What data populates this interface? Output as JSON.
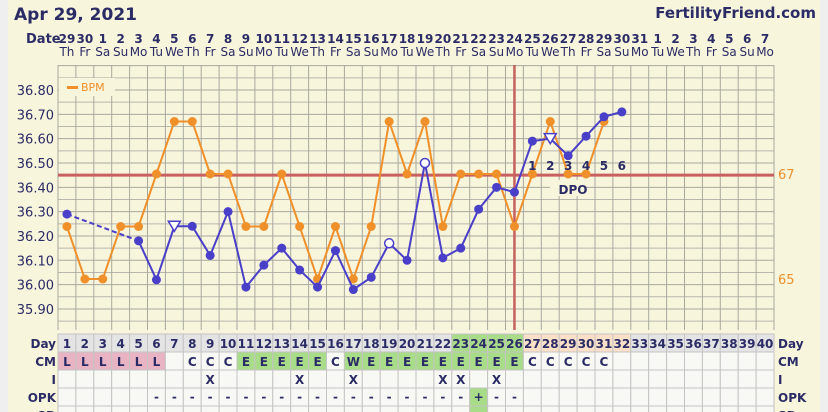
{
  "header": {
    "date": "Apr 29, 2021",
    "site": "FertilityFriend.com",
    "date_label": "Date"
  },
  "dates": [
    "29",
    "30",
    "1",
    "2",
    "3",
    "4",
    "5",
    "6",
    "7",
    "8",
    "9",
    "10",
    "11",
    "12",
    "13",
    "14",
    "15",
    "16",
    "17",
    "18",
    "19",
    "20",
    "21",
    "22",
    "23",
    "24",
    "25",
    "26",
    "27",
    "28",
    "29",
    "30",
    "31",
    "1",
    "2",
    "3",
    "4",
    "5",
    "6",
    "7"
  ],
  "weekdays": [
    "Th",
    "Fr",
    "Sa",
    "Su",
    "Mo",
    "Tu",
    "We",
    "Th",
    "Fr",
    "Sa",
    "Su",
    "Mo",
    "Tu",
    "We",
    "Th",
    "Fr",
    "Sa",
    "Su",
    "Mo",
    "Tu",
    "We",
    "Th",
    "Fr",
    "Sa",
    "Su",
    "Mo",
    "Tu",
    "We",
    "Th",
    "Fr",
    "Sa",
    "Su",
    "Mo",
    "Tu",
    "We",
    "Th",
    "Fr",
    "Sa",
    "Su",
    "Mo"
  ],
  "colors": {
    "temp": "#4a3fc8",
    "bpm": "#f0902a",
    "coverline": "#c86060",
    "cm_l": "#e8b4c4",
    "cm_fertile": "#a8dc88",
    "luteal_header": "#fbe0c8",
    "fertile_header": "#a8dc88"
  },
  "chart_data": {
    "type": "line",
    "xlabel": "Day",
    "ylim": [
      35.8,
      36.9
    ],
    "y_ticks": [
      "36.80",
      "36.70",
      "36.60",
      "36.50",
      "36.40",
      "36.30",
      "36.20",
      "36.10",
      "36.00",
      "35.90"
    ],
    "y2_ticks": [
      "67",
      "65"
    ],
    "grid": true,
    "legend": {
      "placement": "top-left",
      "entries": [
        "BPM"
      ]
    },
    "coverline": 36.45,
    "ovulation_day": 26,
    "dpo_label": "DPO",
    "dpo_numbers": [
      {
        "day": 27,
        "label": "1"
      },
      {
        "day": 28,
        "label": "2"
      },
      {
        "day": 29,
        "label": "3"
      },
      {
        "day": 30,
        "label": "4"
      },
      {
        "day": 31,
        "label": "5"
      },
      {
        "day": 32,
        "label": "6"
      }
    ],
    "series": [
      {
        "name": "Temperature",
        "points": [
          {
            "day": 1,
            "value": 36.29
          },
          {
            "day": 5,
            "value": 36.18,
            "dashed_from_prev": true
          },
          {
            "day": 6,
            "value": 36.02
          },
          {
            "day": 7,
            "value": 36.24,
            "marker": "open-triangle"
          },
          {
            "day": 8,
            "value": 36.24
          },
          {
            "day": 9,
            "value": 36.12
          },
          {
            "day": 10,
            "value": 36.3
          },
          {
            "day": 11,
            "value": 35.99
          },
          {
            "day": 12,
            "value": 36.08
          },
          {
            "day": 13,
            "value": 36.15
          },
          {
            "day": 14,
            "value": 36.06
          },
          {
            "day": 15,
            "value": 35.99
          },
          {
            "day": 16,
            "value": 36.14
          },
          {
            "day": 17,
            "value": 35.98
          },
          {
            "day": 18,
            "value": 36.03
          },
          {
            "day": 19,
            "value": 36.17,
            "marker": "open-circle"
          },
          {
            "day": 20,
            "value": 36.1
          },
          {
            "day": 21,
            "value": 36.5,
            "marker": "open-circle"
          },
          {
            "day": 22,
            "value": 36.11
          },
          {
            "day": 23,
            "value": 36.15
          },
          {
            "day": 24,
            "value": 36.31
          },
          {
            "day": 25,
            "value": 36.4
          },
          {
            "day": 26,
            "value": 36.38
          },
          {
            "day": 27,
            "value": 36.59
          },
          {
            "day": 28,
            "value": 36.6,
            "marker": "open-triangle"
          },
          {
            "day": 29,
            "value": 36.53
          },
          {
            "day": 30,
            "value": 36.61
          },
          {
            "day": 31,
            "value": 36.69
          },
          {
            "day": 32,
            "value": 36.71
          }
        ]
      },
      {
        "name": "BPM",
        "axis": "right",
        "values": [
          66,
          65,
          65,
          66,
          66,
          67,
          68,
          68,
          67,
          67,
          66,
          66,
          67,
          66,
          65,
          66,
          65,
          66,
          68,
          67,
          68,
          66,
          67,
          67,
          67,
          66,
          67,
          68,
          67,
          67,
          68
        ]
      }
    ]
  },
  "table": {
    "row_labels": [
      "Day",
      "CM",
      "I",
      "OPK",
      "SD"
    ],
    "cm": [
      "L",
      "L",
      "L",
      "L",
      "L",
      "L",
      "",
      "C",
      "C",
      "C",
      "E",
      "E",
      "E",
      "E",
      "E",
      "C",
      "W",
      "E",
      "E",
      "E",
      "E",
      "E",
      "E",
      "E",
      "E",
      "E",
      "C",
      "C",
      "C",
      "C",
      "C",
      "",
      "",
      "",
      "",
      "",
      "",
      "",
      "",
      ""
    ],
    "intercourse_days": [
      9,
      14,
      17,
      22,
      23,
      25
    ],
    "intercourse_mark": "X",
    "opk": {
      "negative_days_from": 6,
      "negative_days_to": 26,
      "positive_day": 24,
      "negative_mark": "-",
      "positive_mark": "+"
    },
    "fertile_header_days": [
      23,
      24,
      25,
      26
    ],
    "luteal_header_days": [
      27,
      28,
      29,
      30,
      31,
      32
    ]
  }
}
